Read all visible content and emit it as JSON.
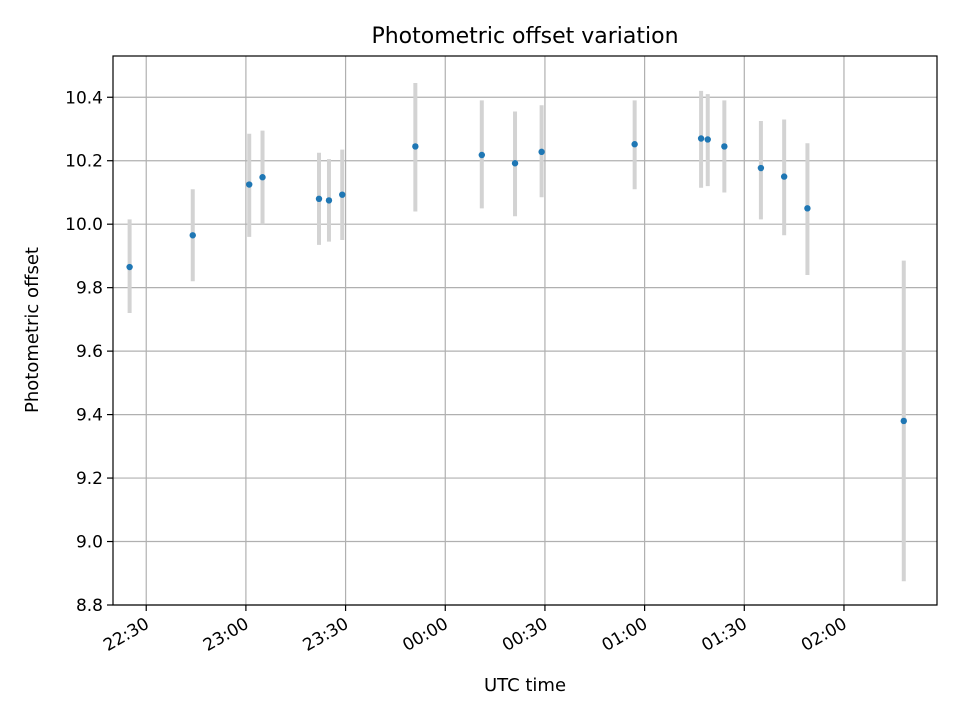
{
  "chart_data": {
    "type": "scatter",
    "title": "Photometric offset variation",
    "xlabel": "UTC time",
    "ylabel": "Photometric offset",
    "ylim": [
      8.8,
      10.53
    ],
    "xlim": [
      "22:20",
      "02:28"
    ],
    "x_tick_labels": [
      "22:30",
      "23:00",
      "23:30",
      "00:00",
      "00:30",
      "01:00",
      "01:30",
      "02:00"
    ],
    "y_ticks": [
      8.8,
      9.0,
      9.2,
      9.4,
      9.6,
      9.8,
      10.0,
      10.2,
      10.4
    ],
    "grid": true,
    "marker_color": "#1f77b4",
    "errorbar_color": "#d3d3d3",
    "points": [
      {
        "time": "22:25",
        "y": 9.865,
        "low": 9.72,
        "high": 10.015
      },
      {
        "time": "22:44",
        "y": 9.965,
        "low": 9.82,
        "high": 10.11
      },
      {
        "time": "23:01",
        "y": 10.125,
        "low": 9.96,
        "high": 10.285
      },
      {
        "time": "23:05",
        "y": 10.148,
        "low": 10.0,
        "high": 10.295
      },
      {
        "time": "23:22",
        "y": 10.08,
        "low": 9.935,
        "high": 10.225
      },
      {
        "time": "23:25",
        "y": 10.075,
        "low": 9.945,
        "high": 10.205
      },
      {
        "time": "23:29",
        "y": 10.093,
        "low": 9.95,
        "high": 10.235
      },
      {
        "time": "23:51",
        "y": 10.245,
        "low": 10.04,
        "high": 10.445
      },
      {
        "time": "00:11",
        "y": 10.218,
        "low": 10.05,
        "high": 10.39
      },
      {
        "time": "00:21",
        "y": 10.192,
        "low": 10.025,
        "high": 10.355
      },
      {
        "time": "00:29",
        "y": 10.228,
        "low": 10.085,
        "high": 10.375
      },
      {
        "time": "00:57",
        "y": 10.252,
        "low": 10.11,
        "high": 10.39
      },
      {
        "time": "01:17",
        "y": 10.27,
        "low": 10.115,
        "high": 10.42
      },
      {
        "time": "01:19",
        "y": 10.267,
        "low": 10.12,
        "high": 10.41
      },
      {
        "time": "01:24",
        "y": 10.245,
        "low": 10.1,
        "high": 10.39
      },
      {
        "time": "01:35",
        "y": 10.177,
        "low": 10.015,
        "high": 10.325
      },
      {
        "time": "01:42",
        "y": 10.15,
        "low": 9.965,
        "high": 10.33
      },
      {
        "time": "01:49",
        "y": 10.05,
        "low": 9.84,
        "high": 10.255
      },
      {
        "time": "02:18",
        "y": 9.38,
        "low": 8.875,
        "high": 9.885
      }
    ]
  }
}
